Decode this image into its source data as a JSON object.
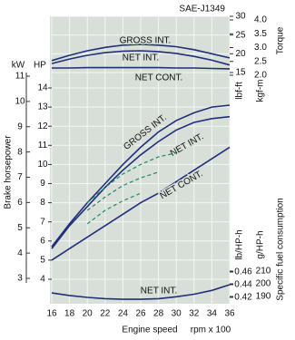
{
  "chart_data": {
    "type": "line",
    "title": "SAE-J1349",
    "x_label": "Engine speed",
    "x_unit": "rpm x 100",
    "x": [
      16,
      18,
      20,
      22,
      24,
      26,
      28,
      30,
      32,
      34,
      36
    ],
    "xlim": [
      16,
      36
    ],
    "xticks": [
      16,
      18,
      20,
      22,
      24,
      26,
      28,
      30,
      32,
      34,
      36
    ],
    "grid": true,
    "axes": {
      "kw": {
        "label": "kW",
        "lim": [
          3,
          11
        ],
        "ticks": [
          3,
          4,
          5,
          6,
          7,
          8,
          9,
          10,
          11
        ]
      },
      "hp": {
        "label": "HP",
        "title": "Brake horsepower",
        "lim": [
          4,
          14
        ],
        "ticks": [
          4,
          5,
          6,
          7,
          8,
          9,
          10,
          11,
          12,
          13,
          14
        ]
      },
      "lbf": {
        "label": "lbf-ft",
        "lim": [
          15,
          30
        ],
        "ticks": [
          15,
          20,
          25,
          30
        ]
      },
      "kgf": {
        "label": "kgf-m",
        "title": "Torque",
        "lim": [
          2,
          4
        ],
        "ticks": [
          {
            "value": 2,
            "label": "2.0"
          },
          {
            "value": 2.5,
            "label": "2.5"
          },
          {
            "value": 3,
            "label": "3.0"
          },
          {
            "value": 3.5,
            "label": "3.5"
          },
          {
            "value": 4,
            "label": "4.0"
          }
        ]
      },
      "lb": {
        "label": "lb/HP-h",
        "lim": [
          0.42,
          0.46
        ],
        "ticks": [
          0.42,
          0.44,
          0.46
        ]
      },
      "g": {
        "label": "g/HP-h",
        "title": "Specific fuel consumption",
        "lim": [
          190,
          210
        ],
        "ticks": [
          190,
          200,
          210
        ]
      }
    },
    "series": [
      {
        "name": "GROSS INT.",
        "axis": "lbf",
        "color": "#1f2f7a",
        "values": [
          18.2,
          19.6,
          20.8,
          21.7,
          22.3,
          22.5,
          22.3,
          21.9,
          21.1,
          20.0,
          18.9
        ]
      },
      {
        "name": "NET INT.",
        "axis": "lbf",
        "color": "#1f2f7a",
        "values": [
          17.4,
          18.6,
          19.6,
          20.3,
          20.7,
          20.8,
          20.6,
          20.1,
          19.3,
          18.3,
          17.0
        ]
      },
      {
        "name": "NET CONT.",
        "axis": "lbf",
        "color": "#1f2f7a",
        "values": [
          16.2,
          16.2,
          16.3,
          16.3,
          16.3,
          16.3,
          16.3,
          16.2,
          16.2,
          16.1,
          16.0
        ]
      },
      {
        "name": "GROSS INT.",
        "axis": "hp",
        "color": "#1f2f7a",
        "values": [
          5.7,
          6.9,
          8.0,
          9.0,
          10.0,
          10.9,
          11.7,
          12.3,
          12.7,
          13.0,
          13.1
        ]
      },
      {
        "name": "NET INT.",
        "axis": "hp",
        "color": "#1f2f7a",
        "values": [
          5.6,
          6.8,
          7.8,
          8.8,
          9.7,
          10.5,
          11.2,
          11.8,
          12.2,
          12.4,
          12.5
        ]
      },
      {
        "name": "NET CONT.",
        "axis": "hp",
        "color": "#1f2f7a",
        "values": [
          5.0,
          5.6,
          6.2,
          6.8,
          7.4,
          8.0,
          8.5,
          9.1,
          9.7,
          10.3,
          10.9
        ]
      },
      {
        "axis": "hp",
        "color": "#1a8a6a",
        "dashed": true,
        "values": [
          null,
          null,
          8.0,
          8.8,
          9.5,
          10.0,
          10.4,
          10.6,
          null,
          null,
          null
        ]
      },
      {
        "axis": "hp",
        "color": "#1a8a6a",
        "dashed": true,
        "values": [
          null,
          null,
          7.6,
          8.3,
          8.9,
          9.3,
          9.6,
          null,
          null,
          null,
          null
        ]
      },
      {
        "axis": "hp",
        "color": "#1a8a6a",
        "dashed": true,
        "values": [
          null,
          null,
          6.9,
          7.6,
          8.1,
          8.5,
          null,
          null,
          null,
          null,
          null
        ]
      },
      {
        "name": "NET INT.",
        "axis": "lb",
        "color": "#1f2f7a",
        "values": [
          0.427,
          0.423,
          0.42,
          0.418,
          0.417,
          0.417,
          0.418,
          0.421,
          0.425,
          0.431,
          0.44
        ]
      }
    ]
  }
}
